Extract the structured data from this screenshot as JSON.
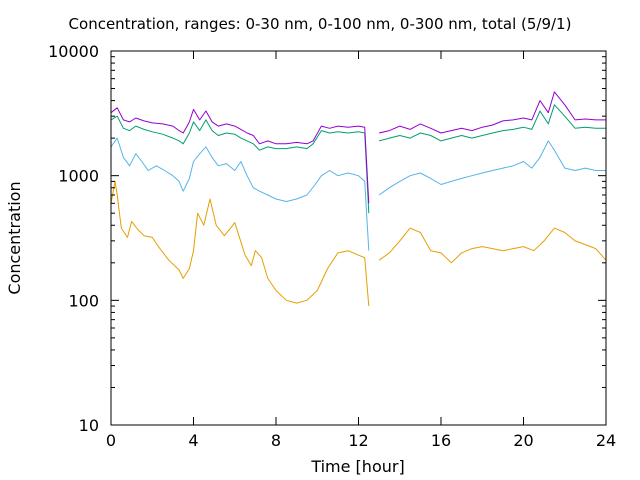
{
  "chart_data": {
    "type": "line",
    "title": "Concentration, ranges: 0-30 nm, 0-100 nm, 0-300 nm, total (5/9/1)",
    "xlabel": "Time [hour]",
    "ylabel": "Concentration",
    "xlim": [
      0,
      24
    ],
    "ylim": [
      10,
      10000
    ],
    "yscale": "log",
    "grid": false,
    "legend": "none",
    "x_ticks": [
      0,
      4,
      8,
      12,
      16,
      20,
      24
    ],
    "x_tick_labels": [
      "0",
      "4",
      "8",
      "12",
      "16",
      "20",
      "24"
    ],
    "y_ticks": [
      10,
      100,
      1000,
      10000
    ],
    "y_tick_labels": [
      "10",
      "100",
      "1000",
      "10000"
    ],
    "series": [
      {
        "color": "#e69f00",
        "points": [
          [
            0,
            600
          ],
          [
            0.2,
            900
          ],
          [
            0.3,
            700
          ],
          [
            0.5,
            380
          ],
          [
            0.8,
            320
          ],
          [
            1.0,
            430
          ],
          [
            1.3,
            370
          ],
          [
            1.6,
            330
          ],
          [
            2.0,
            320
          ],
          [
            2.3,
            270
          ],
          [
            2.8,
            210
          ],
          [
            3.3,
            175
          ],
          [
            3.5,
            150
          ],
          [
            3.8,
            180
          ],
          [
            4.0,
            250
          ],
          [
            4.2,
            500
          ],
          [
            4.5,
            400
          ],
          [
            4.8,
            650
          ],
          [
            5.1,
            400
          ],
          [
            5.5,
            330
          ],
          [
            5.8,
            380
          ],
          [
            6.0,
            420
          ],
          [
            6.2,
            330
          ],
          [
            6.5,
            230
          ],
          [
            6.8,
            190
          ],
          [
            7.0,
            250
          ],
          [
            7.3,
            220
          ],
          [
            7.6,
            150
          ],
          [
            8.0,
            120
          ],
          [
            8.5,
            100
          ],
          [
            9.0,
            95
          ],
          [
            9.5,
            100
          ],
          [
            10.0,
            120
          ],
          [
            10.5,
            180
          ],
          [
            11.0,
            240
          ],
          [
            11.5,
            250
          ],
          [
            12.0,
            230
          ],
          [
            12.3,
            220
          ],
          [
            12.5,
            90
          ],
          [
            12.6,
            null
          ],
          [
            13.0,
            210
          ],
          [
            13.5,
            240
          ],
          [
            14.0,
            300
          ],
          [
            14.5,
            380
          ],
          [
            15.0,
            350
          ],
          [
            15.5,
            250
          ],
          [
            16.0,
            240
          ],
          [
            16.5,
            200
          ],
          [
            17.0,
            240
          ],
          [
            17.5,
            260
          ],
          [
            18.0,
            270
          ],
          [
            18.5,
            260
          ],
          [
            19.0,
            250
          ],
          [
            19.5,
            260
          ],
          [
            20.0,
            270
          ],
          [
            20.5,
            250
          ],
          [
            21.0,
            300
          ],
          [
            21.5,
            380
          ],
          [
            22.0,
            350
          ],
          [
            22.5,
            300
          ],
          [
            23.0,
            280
          ],
          [
            23.5,
            260
          ],
          [
            24.0,
            210
          ]
        ]
      },
      {
        "color": "#56b4e9",
        "points": [
          [
            0,
            1700
          ],
          [
            0.3,
            2000
          ],
          [
            0.6,
            1400
          ],
          [
            0.9,
            1200
          ],
          [
            1.2,
            1500
          ],
          [
            1.5,
            1300
          ],
          [
            1.8,
            1100
          ],
          [
            2.2,
            1200
          ],
          [
            2.6,
            1100
          ],
          [
            3.0,
            1000
          ],
          [
            3.3,
            900
          ],
          [
            3.5,
            750
          ],
          [
            3.8,
            950
          ],
          [
            4.0,
            1300
          ],
          [
            4.3,
            1500
          ],
          [
            4.6,
            1700
          ],
          [
            4.9,
            1400
          ],
          [
            5.2,
            1200
          ],
          [
            5.6,
            1250
          ],
          [
            6.0,
            1100
          ],
          [
            6.3,
            1300
          ],
          [
            6.6,
            1000
          ],
          [
            6.9,
            800
          ],
          [
            7.2,
            750
          ],
          [
            7.6,
            700
          ],
          [
            8.0,
            650
          ],
          [
            8.5,
            620
          ],
          [
            9.0,
            650
          ],
          [
            9.5,
            700
          ],
          [
            9.9,
            850
          ],
          [
            10.2,
            1000
          ],
          [
            10.6,
            1100
          ],
          [
            11.0,
            1000
          ],
          [
            11.5,
            1050
          ],
          [
            12.0,
            1000
          ],
          [
            12.3,
            900
          ],
          [
            12.5,
            250
          ],
          [
            12.6,
            null
          ],
          [
            13.0,
            700
          ],
          [
            13.5,
            800
          ],
          [
            14.0,
            900
          ],
          [
            14.5,
            1000
          ],
          [
            15.0,
            1050
          ],
          [
            15.5,
            950
          ],
          [
            16.0,
            850
          ],
          [
            16.5,
            900
          ],
          [
            17.0,
            950
          ],
          [
            17.5,
            1000
          ],
          [
            18.0,
            1050
          ],
          [
            18.5,
            1100
          ],
          [
            19.0,
            1150
          ],
          [
            19.5,
            1200
          ],
          [
            20.0,
            1300
          ],
          [
            20.4,
            1150
          ],
          [
            20.8,
            1400
          ],
          [
            21.2,
            1900
          ],
          [
            21.5,
            1600
          ],
          [
            22.0,
            1150
          ],
          [
            22.5,
            1100
          ],
          [
            23.0,
            1150
          ],
          [
            23.5,
            1100
          ],
          [
            24.0,
            1100
          ]
        ]
      },
      {
        "color": "#009e73",
        "points": [
          [
            0,
            2800
          ],
          [
            0.3,
            3000
          ],
          [
            0.6,
            2400
          ],
          [
            0.9,
            2300
          ],
          [
            1.2,
            2500
          ],
          [
            1.6,
            2350
          ],
          [
            2.0,
            2250
          ],
          [
            2.5,
            2150
          ],
          [
            3.0,
            2000
          ],
          [
            3.3,
            1900
          ],
          [
            3.5,
            1800
          ],
          [
            3.8,
            2200
          ],
          [
            4.0,
            2700
          ],
          [
            4.3,
            2300
          ],
          [
            4.6,
            2800
          ],
          [
            4.9,
            2300
          ],
          [
            5.2,
            2100
          ],
          [
            5.6,
            2200
          ],
          [
            6.0,
            2150
          ],
          [
            6.3,
            2000
          ],
          [
            6.6,
            1900
          ],
          [
            6.9,
            1800
          ],
          [
            7.2,
            1600
          ],
          [
            7.6,
            1700
          ],
          [
            8.0,
            1650
          ],
          [
            8.5,
            1650
          ],
          [
            9.0,
            1700
          ],
          [
            9.5,
            1650
          ],
          [
            9.8,
            1800
          ],
          [
            10.2,
            2300
          ],
          [
            10.6,
            2200
          ],
          [
            11.0,
            2250
          ],
          [
            11.5,
            2200
          ],
          [
            12.0,
            2250
          ],
          [
            12.3,
            2200
          ],
          [
            12.5,
            500
          ],
          [
            12.6,
            null
          ],
          [
            13.0,
            1900
          ],
          [
            13.5,
            2000
          ],
          [
            14.0,
            2100
          ],
          [
            14.5,
            2000
          ],
          [
            15.0,
            2200
          ],
          [
            15.5,
            2100
          ],
          [
            16.0,
            1900
          ],
          [
            16.5,
            2000
          ],
          [
            17.0,
            2100
          ],
          [
            17.5,
            2000
          ],
          [
            18.0,
            2100
          ],
          [
            18.5,
            2200
          ],
          [
            19.0,
            2300
          ],
          [
            19.5,
            2350
          ],
          [
            20.0,
            2450
          ],
          [
            20.4,
            2350
          ],
          [
            20.8,
            3300
          ],
          [
            21.2,
            2600
          ],
          [
            21.5,
            3700
          ],
          [
            22.0,
            3000
          ],
          [
            22.5,
            2400
          ],
          [
            23.0,
            2450
          ],
          [
            23.5,
            2400
          ],
          [
            24.0,
            2400
          ]
        ]
      },
      {
        "color": "#9400d3",
        "points": [
          [
            0,
            3200
          ],
          [
            0.3,
            3500
          ],
          [
            0.6,
            2800
          ],
          [
            0.9,
            2700
          ],
          [
            1.2,
            2900
          ],
          [
            1.6,
            2750
          ],
          [
            2.0,
            2650
          ],
          [
            2.5,
            2600
          ],
          [
            3.0,
            2500
          ],
          [
            3.3,
            2300
          ],
          [
            3.5,
            2200
          ],
          [
            3.8,
            2700
          ],
          [
            4.0,
            3400
          ],
          [
            4.3,
            2800
          ],
          [
            4.6,
            3300
          ],
          [
            4.9,
            2700
          ],
          [
            5.2,
            2500
          ],
          [
            5.6,
            2600
          ],
          [
            6.0,
            2500
          ],
          [
            6.3,
            2350
          ],
          [
            6.6,
            2200
          ],
          [
            6.9,
            2100
          ],
          [
            7.2,
            1800
          ],
          [
            7.6,
            1900
          ],
          [
            8.0,
            1800
          ],
          [
            8.5,
            1800
          ],
          [
            9.0,
            1850
          ],
          [
            9.5,
            1800
          ],
          [
            9.8,
            1900
          ],
          [
            10.2,
            2500
          ],
          [
            10.6,
            2400
          ],
          [
            11.0,
            2500
          ],
          [
            11.5,
            2450
          ],
          [
            12.0,
            2500
          ],
          [
            12.3,
            2450
          ],
          [
            12.5,
            600
          ],
          [
            12.6,
            null
          ],
          [
            13.0,
            2200
          ],
          [
            13.5,
            2300
          ],
          [
            14.0,
            2500
          ],
          [
            14.5,
            2350
          ],
          [
            15.0,
            2600
          ],
          [
            15.5,
            2400
          ],
          [
            16.0,
            2200
          ],
          [
            16.5,
            2300
          ],
          [
            17.0,
            2400
          ],
          [
            17.5,
            2300
          ],
          [
            18.0,
            2450
          ],
          [
            18.5,
            2550
          ],
          [
            19.0,
            2750
          ],
          [
            19.5,
            2800
          ],
          [
            20.0,
            2900
          ],
          [
            20.4,
            2800
          ],
          [
            20.8,
            4000
          ],
          [
            21.2,
            3200
          ],
          [
            21.5,
            4700
          ],
          [
            22.0,
            3700
          ],
          [
            22.5,
            2800
          ],
          [
            23.0,
            2850
          ],
          [
            23.5,
            2800
          ],
          [
            24.0,
            2800
          ]
        ]
      }
    ]
  }
}
